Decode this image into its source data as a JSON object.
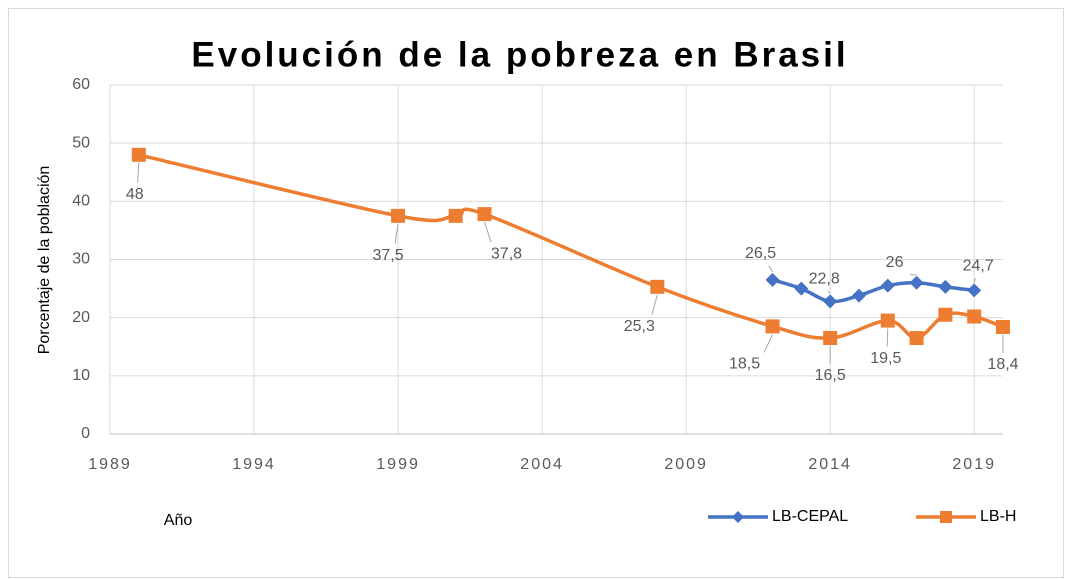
{
  "chart_data": {
    "type": "line",
    "title": "Evolución de la pobreza en Brasil",
    "x_label": "Año",
    "y_label": "Porcentaje de la población",
    "xlim": [
      1989,
      2020
    ],
    "xticks": [
      1989,
      1994,
      1999,
      2004,
      2009,
      2014,
      2019
    ],
    "ylim": [
      0,
      60
    ],
    "yticks": [
      0,
      10,
      20,
      30,
      40,
      50,
      60
    ],
    "grid": true,
    "legend": "bottom-right",
    "series": [
      {
        "name": "LB-CEPAL",
        "color": "#4472c4",
        "marker": "diamond",
        "x": [
          2012,
          2013,
          2014,
          2015,
          2016,
          2017,
          2018,
          2019
        ],
        "values": [
          26.5,
          25,
          22.8,
          23.8,
          25.5,
          26,
          25.3,
          24.7
        ],
        "value_labels": [
          "26,5",
          null,
          "22,8",
          null,
          null,
          "26",
          null,
          "24,7"
        ]
      },
      {
        "name": "LB-H",
        "color": "#ed7d31",
        "marker": "square",
        "x": [
          1990,
          1999,
          2001,
          2002,
          2008,
          2012,
          2014,
          2016,
          2017,
          2018,
          2019,
          2020
        ],
        "values": [
          48,
          37.5,
          37.5,
          37.8,
          25.3,
          18.5,
          16.5,
          19.5,
          16.5,
          20.5,
          20.2,
          18.4
        ],
        "value_labels": [
          "48",
          "37,5",
          null,
          "37,8",
          "25,3",
          "18,5",
          "16,5",
          "19,5",
          null,
          null,
          null,
          "18,4"
        ]
      }
    ]
  }
}
